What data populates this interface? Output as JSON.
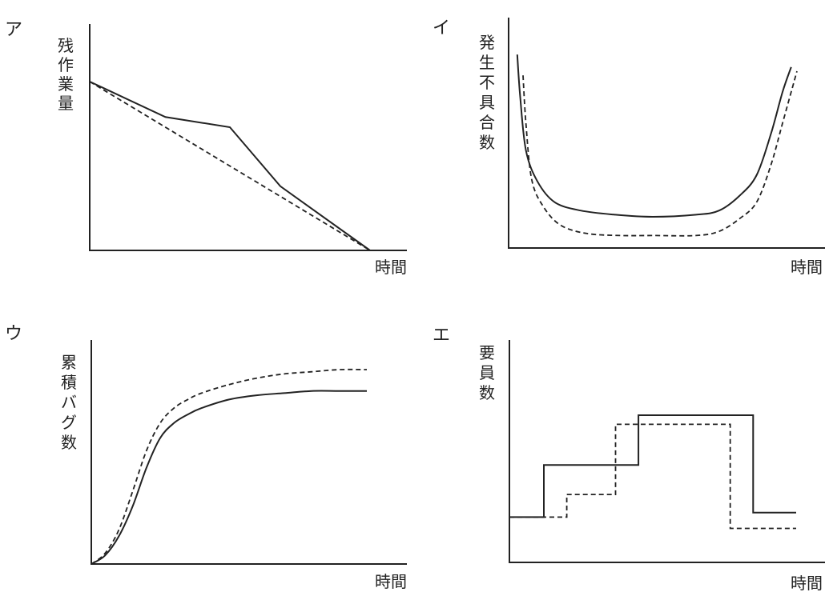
{
  "chart_data": [
    {
      "type": "line",
      "panel_label": "ア",
      "ylabel": "残作業量",
      "xlabel": "時間",
      "xlim": [
        0,
        100
      ],
      "ylim": [
        0,
        100
      ],
      "series": [
        {
          "style": "solid",
          "x": [
            0,
            27,
            50,
            68,
            100
          ],
          "y": [
            100,
            79,
            73,
            38,
            0
          ]
        },
        {
          "style": "dashed",
          "x": [
            0,
            100
          ],
          "y": [
            100,
            0
          ]
        }
      ]
    },
    {
      "type": "line",
      "panel_label": "イ",
      "ylabel": "発生不具合数",
      "xlabel": "時間",
      "xlim": [
        0,
        100
      ],
      "ylim": [
        0,
        100
      ],
      "series": [
        {
          "style": "solid",
          "x": [
            3,
            4,
            6,
            10,
            16,
            25,
            37,
            50,
            65,
            73,
            80,
            86,
            91,
            95,
            98
          ],
          "y": [
            93,
            73,
            47,
            32,
            22,
            18,
            16,
            15,
            16,
            18,
            25,
            35,
            55,
            75,
            87
          ]
        },
        {
          "style": "dashed",
          "x": [
            5,
            6,
            8,
            12,
            18,
            27,
            39,
            50,
            65,
            73,
            80,
            86,
            91,
            95,
            100
          ],
          "y": [
            83,
            60,
            33,
            20,
            11,
            7,
            6,
            6,
            6,
            8,
            14,
            22,
            40,
            60,
            85
          ]
        }
      ]
    },
    {
      "type": "line",
      "panel_label": "ウ",
      "ylabel": "累積バグ数",
      "xlabel": "時間",
      "xlim": [
        0,
        100
      ],
      "ylim": [
        0,
        100
      ],
      "series": [
        {
          "style": "solid",
          "x": [
            0,
            5,
            10,
            15,
            20,
            25,
            30,
            35,
            40,
            50,
            60,
            70,
            80,
            90,
            100
          ],
          "y": [
            0,
            4,
            13,
            27,
            45,
            59,
            66,
            70,
            73,
            77,
            79,
            80,
            81,
            81,
            81
          ]
        },
        {
          "style": "dashed",
          "x": [
            0,
            5,
            10,
            15,
            20,
            25,
            30,
            35,
            40,
            50,
            60,
            70,
            80,
            90,
            100
          ],
          "y": [
            0,
            5,
            16,
            34,
            53,
            66,
            73,
            77,
            80,
            84,
            87,
            89,
            90,
            91,
            91
          ]
        }
      ]
    },
    {
      "type": "line",
      "step": true,
      "panel_label": "エ",
      "ylabel": "要員数",
      "xlabel": "時間",
      "xlim": [
        0,
        100
      ],
      "ylim": [
        0,
        100
      ],
      "series": [
        {
          "style": "solid",
          "x": [
            0,
            12,
            12,
            45,
            45,
            85,
            85,
            100
          ],
          "y": [
            20,
            20,
            43,
            43,
            65,
            65,
            22,
            22
          ]
        },
        {
          "style": "dashed",
          "x": [
            0,
            20,
            20,
            37,
            37,
            77,
            77,
            100
          ],
          "y": [
            20,
            20,
            30,
            30,
            61,
            61,
            15,
            15
          ]
        }
      ]
    }
  ]
}
